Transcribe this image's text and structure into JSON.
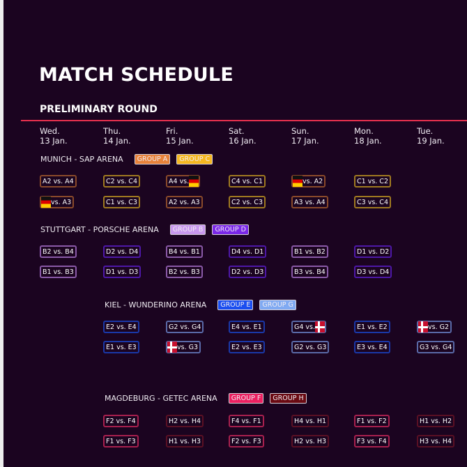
{
  "title": "MATCH SCHEDULE",
  "subtitle": "PRELIMINARY ROUND",
  "days": [
    {
      "weekday": "Wed.",
      "date": "13 Jan."
    },
    {
      "weekday": "Thu.",
      "date": "14 Jan."
    },
    {
      "weekday": "Fri.",
      "date": "15 Jan."
    },
    {
      "weekday": "Sat.",
      "date": "16 Jan."
    },
    {
      "weekday": "Sun.",
      "date": "17 Jan."
    },
    {
      "weekday": "Mon.",
      "date": "18 Jan."
    },
    {
      "weekday": "Tue.",
      "date": "19 Jan."
    }
  ],
  "group_colors": {
    "A": {
      "fill": "#e8823a",
      "border": "#8a4a2a"
    },
    "C": {
      "fill": "#f5b820",
      "border": "#a07a20"
    },
    "B": {
      "fill": "#c898ee",
      "border": "#8a5aa8"
    },
    "D": {
      "fill": "#7a28e8",
      "border": "#4e18a8"
    },
    "E": {
      "fill": "#1a4ef0",
      "border": "#1a38a8"
    },
    "G": {
      "fill": "#80aaf2",
      "border": "#5a6aa8"
    },
    "F": {
      "fill": "#ec2060",
      "border": "#a8204e"
    },
    "H": {
      "fill": "#6a0a12",
      "border": "#5a1024"
    }
  },
  "venues": [
    {
      "name": "MUNICH - SAP ARENA",
      "groups": [
        {
          "label": "GROUP A",
          "key": "A"
        },
        {
          "label": "GROUP C",
          "key": "C"
        }
      ],
      "first_day": 0,
      "rows": [
        [
          {
            "text": "A2 vs. A4",
            "g": "A"
          },
          {
            "text": "C2 vs. C4",
            "g": "C"
          },
          {
            "text": "A4 vs.",
            "flag": "germany",
            "flag_side": "right",
            "g": "A"
          },
          {
            "text": "C4 vs. C1",
            "g": "C"
          },
          {
            "text": "vs. A2",
            "flag": "germany",
            "flag_side": "left",
            "g": "A"
          },
          {
            "text": "C1 vs. C2",
            "g": "C"
          }
        ],
        [
          {
            "text": "vs. A3",
            "flag": "germany",
            "flag_side": "left",
            "g": "A"
          },
          {
            "text": "C1 vs. C3",
            "g": "C"
          },
          {
            "text": "A2 vs. A3",
            "g": "A"
          },
          {
            "text": "C2 vs. C3",
            "g": "C"
          },
          {
            "text": "A3 vs. A4",
            "g": "A"
          },
          {
            "text": "C3 vs. C4",
            "g": "C"
          }
        ]
      ]
    },
    {
      "name": "STUTTGART - PORSCHE ARENA",
      "groups": [
        {
          "label": "GROUP B",
          "key": "B"
        },
        {
          "label": "GROUP D",
          "key": "D"
        }
      ],
      "first_day": 0,
      "rows": [
        [
          {
            "text": "B2 vs. B4",
            "g": "B"
          },
          {
            "text": "D2 vs. D4",
            "g": "D"
          },
          {
            "text": "B4 vs. B1",
            "g": "B"
          },
          {
            "text": "D4 vs. D1",
            "g": "D"
          },
          {
            "text": "B1 vs. B2",
            "g": "B"
          },
          {
            "text": "D1 vs. D2",
            "g": "D"
          }
        ],
        [
          {
            "text": "B1 vs. B3",
            "g": "B"
          },
          {
            "text": "D1 vs. D3",
            "g": "D"
          },
          {
            "text": "B2 vs. B3",
            "g": "B"
          },
          {
            "text": "D2 vs. D3",
            "g": "D"
          },
          {
            "text": "B3 vs. B4",
            "g": "B"
          },
          {
            "text": "D3 vs. D4",
            "g": "D"
          }
        ]
      ]
    },
    {
      "name": "KIEL - WUNDERINO ARENA",
      "groups": [
        {
          "label": "GROUP E",
          "key": "E"
        },
        {
          "label": "GROUP G",
          "key": "G"
        }
      ],
      "first_day": 1,
      "rows": [
        [
          {
            "text": "E2 vs. E4",
            "g": "E"
          },
          {
            "text": "G2 vs. G4",
            "g": "G"
          },
          {
            "text": "E4 vs. E1",
            "g": "E"
          },
          {
            "text": "G4 vs.",
            "flag": "denmark",
            "flag_side": "right",
            "g": "G"
          },
          {
            "text": "E1 vs. E2",
            "g": "E"
          },
          {
            "text": "vs. G2",
            "flag": "denmark",
            "flag_side": "left",
            "g": "G"
          }
        ],
        [
          {
            "text": "E1 vs. E3",
            "g": "E"
          },
          {
            "text": "vs. G3",
            "flag": "denmark",
            "flag_side": "left",
            "g": "G"
          },
          {
            "text": "E2 vs. E3",
            "g": "E"
          },
          {
            "text": "G2 vs. G3",
            "g": "G"
          },
          {
            "text": "E3 vs. E4",
            "g": "E"
          },
          {
            "text": "G3 vs. G4",
            "g": "G"
          }
        ]
      ]
    },
    {
      "name": "MAGDEBURG - GETEC ARENA",
      "groups": [
        {
          "label": "GROUP F",
          "key": "F"
        },
        {
          "label": "GROUP H",
          "key": "H"
        }
      ],
      "first_day": 1,
      "rows": [
        [
          {
            "text": "F2 vs. F4",
            "g": "F"
          },
          {
            "text": "H2 vs. H4",
            "g": "H"
          },
          {
            "text": "F4 vs. F1",
            "g": "F"
          },
          {
            "text": "H4 vs. H1",
            "g": "H"
          },
          {
            "text": "F1 vs. F2",
            "g": "F"
          },
          {
            "text": "H1 vs. H2",
            "g": "H"
          }
        ],
        [
          {
            "text": "F1 vs. F3",
            "g": "F"
          },
          {
            "text": "H1 vs. H3",
            "g": "H"
          },
          {
            "text": "F2 vs. F3",
            "g": "F"
          },
          {
            "text": "H2 vs. H3",
            "g": "H"
          },
          {
            "text": "F3 vs. F4",
            "g": "F"
          },
          {
            "text": "H3 vs. H4",
            "g": "H"
          }
        ]
      ]
    }
  ]
}
